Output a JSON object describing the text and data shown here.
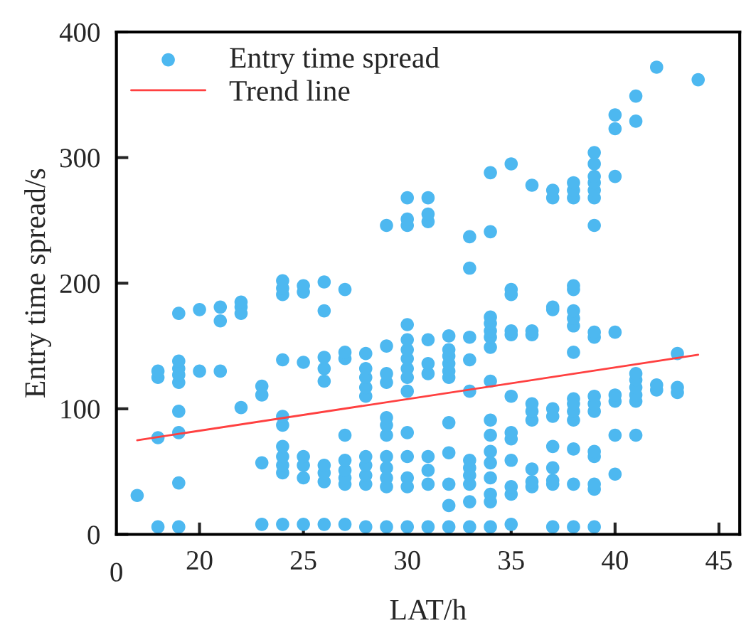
{
  "chart_data": {
    "type": "scatter",
    "xlabel": "LAT/h",
    "ylabel": "Entry time spread/s",
    "xlim": [
      16,
      46
    ],
    "xticks": [
      20,
      25,
      30,
      35,
      40,
      45
    ],
    "annotations": [
      "0"
    ],
    "ylim": [
      0,
      400
    ],
    "yticks": [
      0,
      100,
      200,
      300,
      400
    ],
    "grid": false,
    "legend": "top left",
    "series": [
      {
        "name": "Entry time spread",
        "type": "scatter",
        "color": "#4db8f0",
        "marker": "circle",
        "x": [
          17,
          18,
          18,
          18,
          18,
          19,
          19,
          19,
          19,
          19,
          19,
          19,
          19,
          19,
          20,
          20,
          21,
          21,
          21,
          22,
          22,
          22,
          22,
          23,
          23,
          23,
          23,
          24,
          24,
          24,
          24,
          24,
          24,
          24,
          24,
          24,
          24,
          24,
          25,
          25,
          25,
          25,
          25,
          25,
          25,
          26,
          26,
          26,
          26,
          26,
          26,
          26,
          26,
          26,
          27,
          27,
          27,
          27,
          27,
          27,
          27,
          27,
          27,
          28,
          28,
          28,
          28,
          28,
          28,
          28,
          28,
          28,
          28,
          29,
          29,
          29,
          29,
          29,
          29,
          29,
          29,
          29,
          29,
          29,
          29,
          30,
          30,
          30,
          30,
          30,
          30,
          30,
          30,
          30,
          30,
          30,
          30,
          30,
          30,
          30,
          31,
          31,
          31,
          31,
          31,
          31,
          31,
          31,
          31,
          31,
          32,
          32,
          32,
          32,
          32,
          32,
          32,
          32,
          32,
          32,
          32,
          33,
          33,
          33,
          33,
          33,
          33,
          33,
          33,
          33,
          33,
          33,
          34,
          34,
          34,
          34,
          34,
          34,
          34,
          34,
          34,
          34,
          34,
          34,
          34,
          34,
          34,
          34,
          35,
          35,
          35,
          35,
          35,
          35,
          35,
          35,
          35,
          35,
          35,
          35,
          36,
          36,
          36,
          36,
          36,
          36,
          36,
          36,
          36,
          37,
          37,
          37,
          37,
          37,
          37,
          37,
          37,
          37,
          37,
          37,
          38,
          38,
          38,
          38,
          38,
          38,
          38,
          38,
          38,
          38,
          38,
          38,
          38,
          38,
          38,
          38,
          39,
          39,
          39,
          39,
          39,
          39,
          39,
          39,
          39,
          39,
          39,
          39,
          39,
          39,
          39,
          39,
          39,
          40,
          40,
          40,
          40,
          40,
          40,
          40,
          40,
          41,
          41,
          41,
          41,
          41,
          41,
          41,
          41,
          42,
          42,
          42,
          43,
          43,
          43,
          44
        ],
        "values": [
          31,
          6,
          77,
          125,
          130,
          6,
          41,
          81,
          98,
          121,
          127,
          132,
          138,
          176,
          130,
          179,
          130,
          170,
          181,
          101,
          176,
          181,
          185,
          8,
          57,
          111,
          118,
          8,
          49,
          55,
          62,
          70,
          87,
          94,
          139,
          191,
          196,
          202,
          8,
          45,
          55,
          62,
          137,
          193,
          198,
          8,
          42,
          49,
          55,
          122,
          132,
          141,
          178,
          201,
          8,
          40,
          45,
          51,
          59,
          79,
          140,
          145,
          195,
          6,
          40,
          47,
          55,
          62,
          110,
          117,
          125,
          132,
          144,
          6,
          38,
          45,
          53,
          62,
          79,
          87,
          93,
          121,
          128,
          150,
          246,
          6,
          38,
          45,
          62,
          81,
          114,
          125,
          132,
          140,
          147,
          155,
          167,
          246,
          251,
          268,
          6,
          40,
          51,
          62,
          128,
          136,
          155,
          249,
          255,
          268,
          6,
          23,
          40,
          65,
          89,
          125,
          130,
          136,
          142,
          147,
          158,
          6,
          26,
          40,
          47,
          53,
          59,
          114,
          139,
          157,
          212,
          237,
          6,
          26,
          32,
          45,
          57,
          66,
          79,
          91,
          122,
          149,
          157,
          162,
          168,
          173,
          241,
          288,
          8,
          32,
          38,
          59,
          76,
          81,
          110,
          159,
          162,
          191,
          195,
          295,
          38,
          42,
          52,
          91,
          98,
          104,
          159,
          162,
          278,
          6,
          40,
          43,
          53,
          70,
          94,
          100,
          179,
          181,
          268,
          274,
          6,
          40,
          68,
          91,
          98,
          104,
          108,
          145,
          166,
          172,
          178,
          195,
          198,
          268,
          274,
          280,
          6,
          36,
          40,
          62,
          66,
          98,
          104,
          110,
          157,
          161,
          246,
          268,
          274,
          280,
          285,
          295,
          304,
          48,
          79,
          106,
          111,
          161,
          285,
          323,
          334,
          79,
          106,
          111,
          117,
          123,
          128,
          329,
          349,
          115,
          119,
          372,
          113,
          117,
          144,
          362
        ]
      },
      {
        "name": "Trend line",
        "type": "line",
        "color": "#ff4040",
        "marker": "none",
        "line_style": "solid",
        "x": [
          17,
          44
        ],
        "values": [
          75,
          143
        ]
      }
    ]
  }
}
